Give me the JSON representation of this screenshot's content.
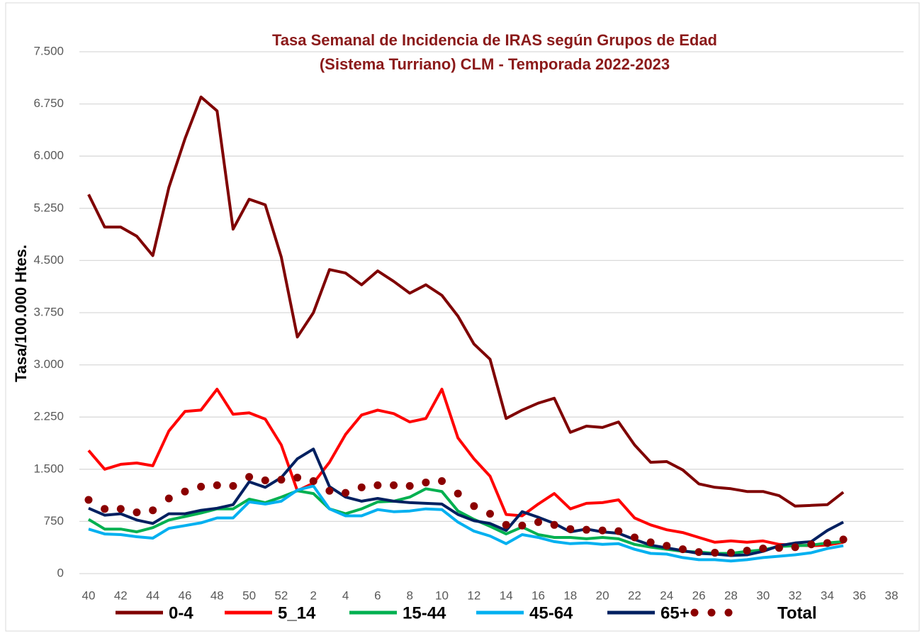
{
  "chart_data": {
    "type": "line",
    "title": [
      "Tasa Semanal de Incidencia de IRAS según Grupos de Edad",
      "(Sistema Turriano) CLM - Temporada 2022-2023"
    ],
    "y_label": "Tasa/100.000 Htes.",
    "categories": [
      40,
      null,
      42,
      null,
      44,
      null,
      46,
      null,
      48,
      null,
      50,
      null,
      52,
      null,
      2,
      null,
      4,
      null,
      6,
      null,
      8,
      null,
      10,
      null,
      12,
      null,
      14,
      null,
      16,
      null,
      18,
      null,
      20,
      null,
      22,
      null,
      24,
      null,
      26,
      null,
      28,
      null,
      30,
      null,
      32,
      null,
      34,
      null,
      36,
      null,
      38
    ],
    "ylim": [
      0,
      7500
    ],
    "yticks": [
      0,
      {
        "value": 750,
        "label": "750"
      },
      {
        "value": 1500,
        "label": "1.500"
      },
      {
        "value": 2250,
        "label": "2.250"
      },
      {
        "value": 3000,
        "label": "3.000"
      },
      {
        "value": 3750,
        "label": "3.750"
      },
      {
        "value": 4500,
        "label": "4.500"
      },
      {
        "value": 5250,
        "label": "5.250"
      },
      {
        "value": 6000,
        "label": "6.000"
      },
      {
        "value": 6750,
        "label": "6.750"
      },
      {
        "value": 7500,
        "label": "7.500"
      }
    ],
    "grid": true,
    "legend": "bottom",
    "series": [
      {
        "name": "0-4",
        "color": "#7f0000",
        "line_style": "solid",
        "values": [
          5450,
          4980,
          4980,
          4850,
          4570,
          5550,
          6250,
          6850,
          6650,
          4950,
          5380,
          5300,
          4550,
          3400,
          3750,
          4370,
          4320,
          4150,
          4350,
          4200,
          4030,
          4150,
          4000,
          3700,
          3300,
          3080,
          2230,
          2350,
          2450,
          2520,
          2030,
          2120,
          2100,
          2180,
          1850,
          1600,
          1610,
          1490,
          1290,
          1240,
          1220,
          1180,
          1180,
          1120,
          970,
          980,
          990,
          1170,
          null,
          null,
          null
        ]
      },
      {
        "name": "5_14",
        "color": "#ff0000",
        "line_style": "solid",
        "values": [
          1770,
          1500,
          1570,
          1590,
          1550,
          2050,
          2330,
          2350,
          2650,
          2290,
          2310,
          2220,
          1850,
          1190,
          1300,
          1600,
          2000,
          2280,
          2350,
          2300,
          2180,
          2230,
          2650,
          1950,
          1650,
          1400,
          850,
          830,
          1000,
          1150,
          930,
          1010,
          1020,
          1060,
          800,
          700,
          630,
          590,
          520,
          450,
          470,
          450,
          470,
          420,
          410,
          400,
          410,
          450,
          null,
          null,
          null
        ]
      },
      {
        "name": "15-44",
        "color": "#00b050",
        "line_style": "solid",
        "values": [
          780,
          640,
          640,
          600,
          660,
          770,
          820,
          870,
          930,
          930,
          1070,
          1020,
          1100,
          1190,
          1150,
          930,
          860,
          930,
          1030,
          1040,
          1100,
          1220,
          1180,
          900,
          780,
          680,
          570,
          670,
          560,
          520,
          520,
          500,
          520,
          500,
          420,
          380,
          350,
          320,
          310,
          290,
          290,
          320,
          340,
          390,
          400,
          410,
          440,
          460,
          null,
          null,
          null
        ]
      },
      {
        "name": "45-64",
        "color": "#00b0f0",
        "line_style": "solid",
        "values": [
          640,
          570,
          560,
          530,
          510,
          650,
          690,
          730,
          800,
          800,
          1030,
          1000,
          1040,
          1200,
          1260,
          930,
          830,
          830,
          920,
          890,
          900,
          930,
          920,
          740,
          610,
          540,
          430,
          560,
          520,
          460,
          430,
          440,
          420,
          430,
          350,
          290,
          280,
          230,
          200,
          200,
          180,
          200,
          230,
          250,
          270,
          300,
          360,
          400,
          null,
          null,
          null
        ]
      },
      {
        "name": "65+",
        "color": "#002060",
        "line_style": "solid",
        "values": [
          940,
          840,
          860,
          770,
          720,
          860,
          860,
          910,
          940,
          990,
          1320,
          1240,
          1380,
          1650,
          1790,
          1250,
          1100,
          1040,
          1080,
          1040,
          1020,
          1010,
          1000,
          850,
          760,
          720,
          620,
          890,
          810,
          720,
          600,
          640,
          600,
          580,
          490,
          410,
          370,
          330,
          290,
          280,
          260,
          270,
          320,
          400,
          440,
          460,
          620,
          740,
          null,
          null,
          null
        ]
      },
      {
        "name": "Total",
        "color": "#8b0000",
        "line_style": "dotted",
        "values": [
          1060,
          930,
          930,
          880,
          910,
          1080,
          1180,
          1250,
          1270,
          1260,
          1390,
          1340,
          1350,
          1380,
          1330,
          1190,
          1160,
          1240,
          1270,
          1270,
          1260,
          1310,
          1330,
          1150,
          970,
          860,
          700,
          690,
          740,
          700,
          640,
          630,
          620,
          610,
          520,
          450,
          400,
          350,
          310,
          300,
          300,
          330,
          360,
          370,
          380,
          420,
          440,
          490,
          null,
          null,
          null
        ]
      }
    ]
  }
}
